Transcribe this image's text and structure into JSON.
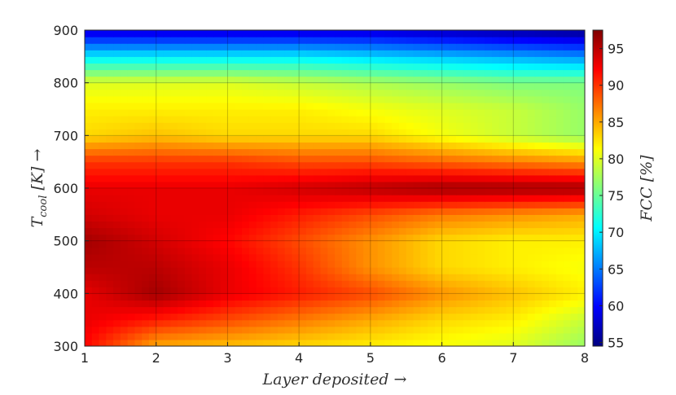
{
  "chart_data": {
    "type": "heatmap",
    "title": "",
    "xlabel": "Layer deposited →",
    "ylabel": "T_cool [K] →",
    "ylabel_parts": {
      "T": "T",
      "sub": "cool",
      "rest": " [K]  →"
    },
    "colorbar_label": "FCC [%]",
    "colorbar_label_parts": {
      "main": "FCC",
      "rest": " [%]"
    },
    "xlim": [
      1,
      8
    ],
    "ylim": [
      300,
      900
    ],
    "color_range": [
      54.5,
      97.5
    ],
    "colormap": "jet",
    "grid": true,
    "x_ticks": [
      "1",
      "2",
      "3",
      "4",
      "5",
      "6",
      "7",
      "8"
    ],
    "y_ticks": [
      "300",
      "400",
      "500",
      "600",
      "700",
      "800",
      "900"
    ],
    "colorbar_ticks": [
      "55",
      "60",
      "65",
      "70",
      "75",
      "80",
      "85",
      "90",
      "95"
    ],
    "x": [
      1,
      2,
      3,
      4,
      5,
      6,
      7,
      8
    ],
    "y": [
      300,
      350,
      400,
      450,
      500,
      550,
      600,
      650,
      700,
      750,
      800,
      850,
      900
    ],
    "z": [
      [
        92,
        85,
        84,
        83,
        82,
        81,
        80,
        77
      ],
      [
        93,
        91,
        89,
        87,
        85,
        83,
        82,
        79
      ],
      [
        93,
        96,
        93,
        91,
        89,
        86,
        84,
        82
      ],
      [
        95,
        95,
        93,
        90,
        86,
        83,
        82,
        81
      ],
      [
        96,
        94,
        92,
        89,
        86,
        83,
        82,
        82
      ],
      [
        94,
        93,
        93,
        91,
        89,
        87,
        86,
        85
      ],
      [
        93,
        93,
        93,
        94,
        95,
        96,
        96,
        96
      ],
      [
        90,
        90,
        90,
        89,
        89,
        88,
        87,
        86
      ],
      [
        83,
        84,
        83,
        83,
        83,
        81,
        79,
        77
      ],
      [
        82,
        82,
        82,
        82,
        81,
        80,
        79,
        77
      ],
      [
        80,
        80,
        80,
        79,
        78,
        77,
        76,
        76
      ],
      [
        70,
        70,
        70,
        70,
        69,
        68,
        67,
        66
      ],
      [
        58,
        58,
        58,
        58,
        58,
        57,
        56,
        55
      ]
    ]
  }
}
